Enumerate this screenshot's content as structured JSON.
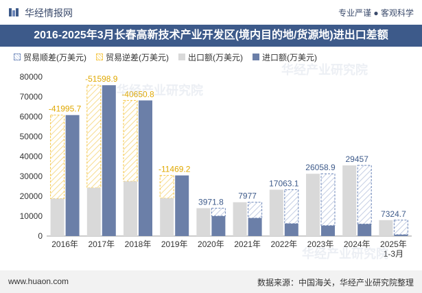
{
  "header": {
    "brand": "华经情报网",
    "slogan": "专业严谨 ● 客观科学"
  },
  "title": "2016-2025年3月长春高新技术产业开发区(境内目的地/货源地)进出口差额",
  "footer": {
    "site": "www.huaon.com",
    "source": "数据来源：中国海关，华经产业研究院整理"
  },
  "watermark": "华经产业研究院",
  "colors": {
    "surplus": "#6b85b8",
    "deficit": "#f5c542",
    "export": "#d9d9d9",
    "import": "#6b7fa8",
    "title_bg": "#3d5a8a"
  },
  "chart_data": {
    "type": "bar",
    "categories": [
      "2016年",
      "2017年",
      "2018年",
      "2019年",
      "2020年",
      "2021年",
      "2022年",
      "2023年",
      "2024年",
      "2025年\n1-3月"
    ],
    "category_lines": [
      [
        "2016年"
      ],
      [
        "2017年"
      ],
      [
        "2018年"
      ],
      [
        "2019年"
      ],
      [
        "2020年"
      ],
      [
        "2021年"
      ],
      [
        "2022年"
      ],
      [
        "2023年"
      ],
      [
        "2024年"
      ],
      [
        "2025年",
        "1-3月"
      ]
    ],
    "ylim": [
      0,
      80000
    ],
    "yticks": [
      0,
      10000,
      20000,
      30000,
      40000,
      50000,
      60000,
      70000,
      80000
    ],
    "legend": [
      "贸易顺差(万美元)",
      "贸易逆差(万美元)",
      "出口额(万美元)",
      "进口额(万美元)"
    ],
    "series": [
      {
        "name": "出口额(万美元)",
        "values": [
          18800,
          24200,
          27500,
          19000,
          14000,
          17000,
          23300,
          31300,
          35500,
          8000
        ]
      },
      {
        "name": "进口额(万美元)",
        "values": [
          60795.7,
          75798.9,
          68150.8,
          30469.2,
          10028.2,
          9023,
          6236.9,
          5241.1,
          6043,
          675.3
        ]
      }
    ],
    "balance_labels": [
      "-41995.7",
      "-51598.9",
      "-40650.8",
      "-11469.2",
      "3971.8",
      "7977",
      "17063.1",
      "26058.9",
      "29457",
      "7324.7"
    ],
    "balance_values": [
      -41995.7,
      -51598.9,
      -40650.8,
      -11469.2,
      3971.8,
      7977,
      17063.1,
      26058.9,
      29457,
      7324.7
    ]
  }
}
